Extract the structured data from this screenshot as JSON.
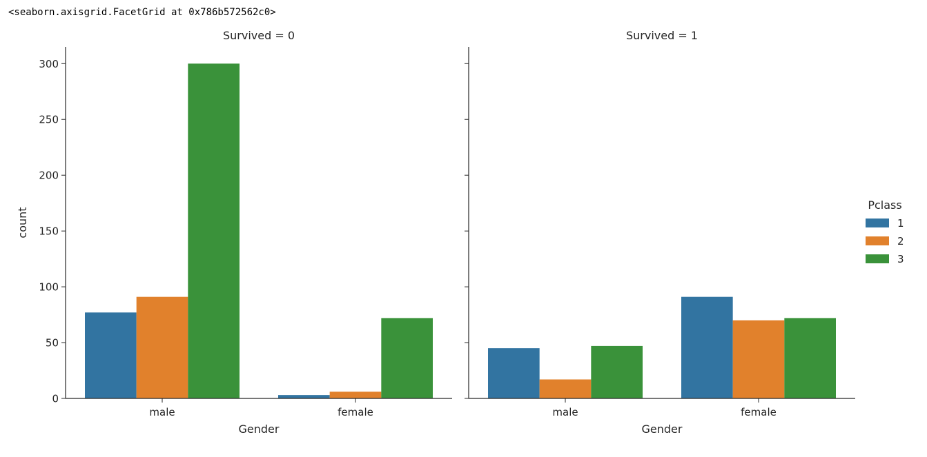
{
  "output_repr": "<seaborn.axisgrid.FacetGrid at 0x786b572562c0>",
  "chart_data": {
    "type": "bar",
    "xlabel": "Gender",
    "ylabel": "count",
    "ylim": [
      0,
      315
    ],
    "yticks": [
      0,
      50,
      100,
      150,
      200,
      250,
      300
    ],
    "categories": [
      "male",
      "female"
    ],
    "legend": {
      "title": "Pclass",
      "placement": "right",
      "entries": [
        "1",
        "2",
        "3"
      ]
    },
    "colors": [
      "#3274a1",
      "#e1812c",
      "#3a923a"
    ],
    "grid": false,
    "facets": [
      {
        "title": "Survived = 0",
        "series": [
          {
            "name": "1",
            "values": [
              77,
              3
            ]
          },
          {
            "name": "2",
            "values": [
              91,
              6
            ]
          },
          {
            "name": "3",
            "values": [
              300,
              72
            ]
          }
        ]
      },
      {
        "title": "Survived = 1",
        "series": [
          {
            "name": "1",
            "values": [
              45,
              91
            ]
          },
          {
            "name": "2",
            "values": [
              17,
              70
            ]
          },
          {
            "name": "3",
            "values": [
              47,
              72
            ]
          }
        ]
      }
    ]
  }
}
